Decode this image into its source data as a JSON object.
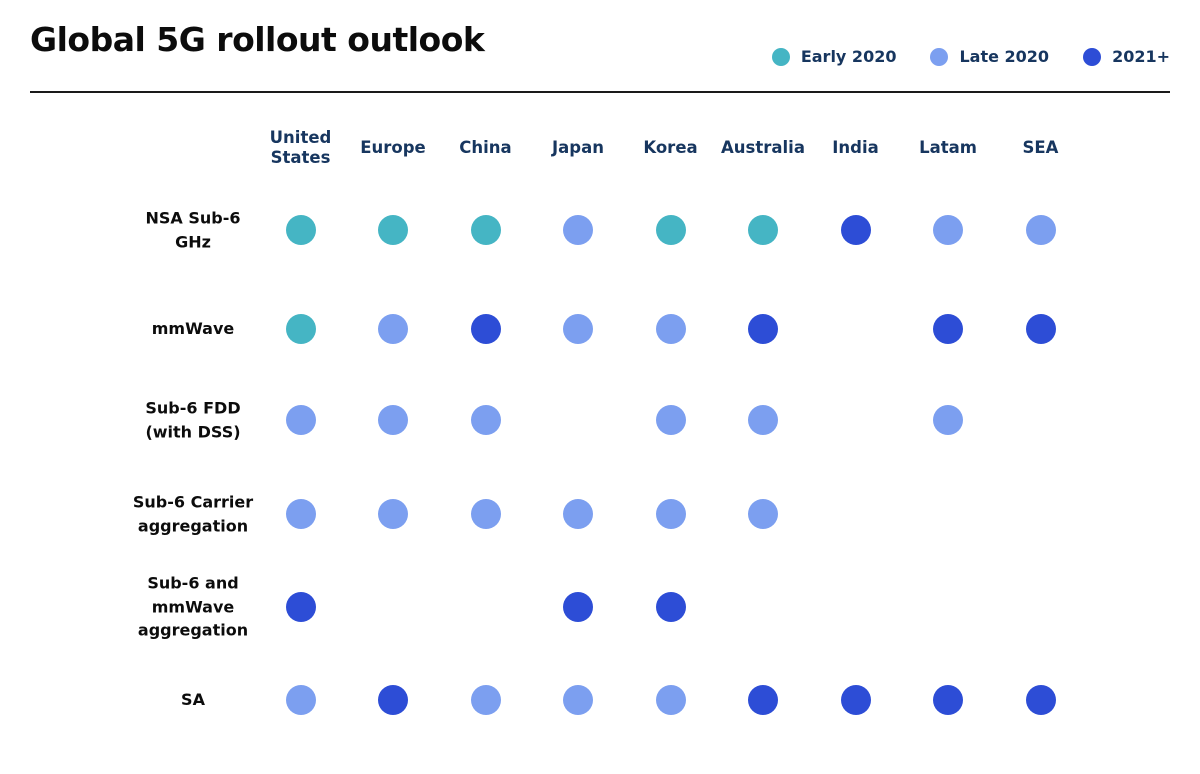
{
  "title": "Global 5G rollout outlook",
  "legend": [
    {
      "key": "early2020",
      "label": "Early 2020"
    },
    {
      "key": "late2020",
      "label": "Late 2020"
    },
    {
      "key": "2021plus",
      "label": "2021+"
    }
  ],
  "colors": {
    "early2020": "#45b5c4",
    "late2020": "#7c9ff0",
    "2021plus": "#2d4dd6",
    "header_text": "#17365f",
    "row_label_text": "#0c0c0c",
    "title_text": "#0c0c0c",
    "divider": "#1a1a1a"
  },
  "chart_data": {
    "type": "heatmap",
    "title": "Global 5G rollout outlook",
    "legend_position": "top-right",
    "value_legend": {
      "early2020": "Early 2020",
      "late2020": "Late 2020",
      "2021plus": "2021+"
    },
    "columns": [
      "United States",
      "Europe",
      "China",
      "Japan",
      "Korea",
      "Australia",
      "India",
      "Latam",
      "SEA"
    ],
    "rows": [
      {
        "label": "NSA Sub-6\nGHz",
        "plain_label": "NSA Sub-6 GHz",
        "values": [
          "early2020",
          "early2020",
          "early2020",
          "late2020",
          "early2020",
          "early2020",
          "2021plus",
          "late2020",
          "late2020"
        ]
      },
      {
        "label": "mmWave",
        "plain_label": "mmWave",
        "values": [
          "early2020",
          "late2020",
          "2021plus",
          "late2020",
          "late2020",
          "2021plus",
          null,
          "2021plus",
          "2021plus"
        ]
      },
      {
        "label": "Sub-6 FDD\n(with DSS)",
        "plain_label": "Sub-6 FDD (with DSS)",
        "values": [
          "late2020",
          "late2020",
          "late2020",
          null,
          "late2020",
          "late2020",
          null,
          "late2020",
          null
        ]
      },
      {
        "label": "Sub-6 Carrier\naggregation",
        "plain_label": "Sub-6 Carrier aggregation",
        "values": [
          "late2020",
          "late2020",
          "late2020",
          "late2020",
          "late2020",
          "late2020",
          null,
          null,
          null
        ]
      },
      {
        "label": "Sub-6 and\nmmWave\naggregation",
        "plain_label": "Sub-6 and mmWave aggregation",
        "values": [
          "2021plus",
          null,
          null,
          "2021plus",
          "2021plus",
          null,
          null,
          null,
          null
        ]
      },
      {
        "label": "SA",
        "plain_label": "SA",
        "values": [
          "late2020",
          "2021plus",
          "late2020",
          "late2020",
          "late2020",
          "2021plus",
          "2021plus",
          "2021plus",
          "2021plus"
        ]
      }
    ]
  }
}
